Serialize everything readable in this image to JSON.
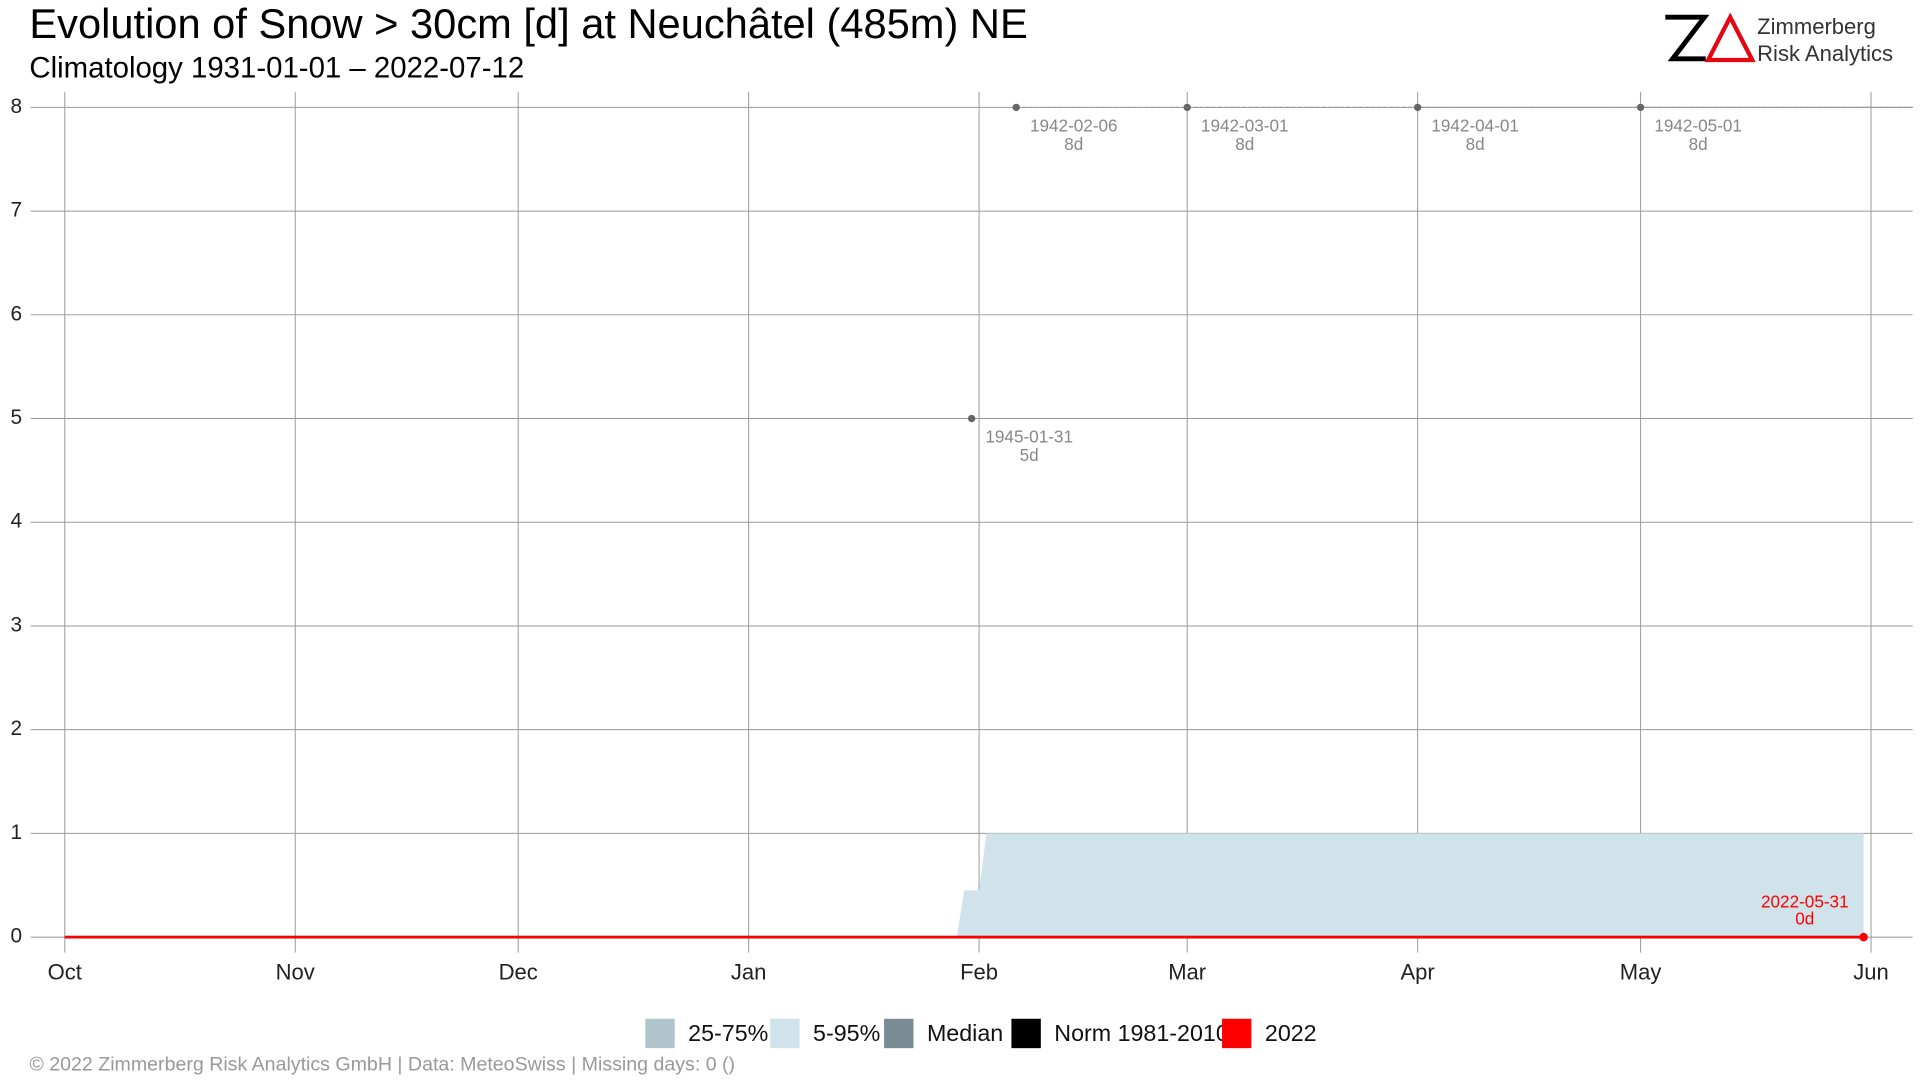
{
  "chart_data": {
    "type": "area",
    "title": "Evolution of Snow > 30cm [d] at Neuchâtel (485m) NE",
    "subtitle": "Climatology 1931-01-01 – 2022-07-12",
    "xlim": [
      -4.6,
      248.6
    ],
    "xticks": [
      {
        "value": 0,
        "label": "Oct"
      },
      {
        "value": 31,
        "label": "Nov"
      },
      {
        "value": 61,
        "label": "Dec"
      },
      {
        "value": 92,
        "label": "Jan"
      },
      {
        "value": 123,
        "label": "Feb"
      },
      {
        "value": 151,
        "label": "Mar"
      },
      {
        "value": 182,
        "label": "Apr"
      },
      {
        "value": 212,
        "label": "May"
      },
      {
        "value": 243,
        "label": "Jun"
      }
    ],
    "ylim": [
      -0.15,
      8.15
    ],
    "yticks": [
      0,
      1,
      2,
      3,
      4,
      5,
      6,
      7,
      8
    ],
    "grid": true,
    "series": [
      {
        "name": "25-75%",
        "color": "#b0c4cb",
        "kind": "band",
        "x": [
          0,
          242
        ],
        "values": [
          0,
          0
        ]
      },
      {
        "name": "5-95%",
        "color": "#d0e3ea",
        "kind": "band",
        "x": [
          0,
          120,
          121,
          123,
          124,
          242
        ],
        "values": [
          0,
          0,
          0.45,
          0.45,
          1,
          1
        ]
      },
      {
        "name": "Median",
        "color": "#7a8c93",
        "kind": "line",
        "x": [
          0,
          242
        ],
        "values": [
          0,
          0
        ]
      },
      {
        "name": "Norm 1981-2010",
        "color": "#000000",
        "kind": "line",
        "x": [
          0,
          242
        ],
        "values": [
          0,
          0
        ]
      },
      {
        "name": "2022",
        "color": "#ff0000",
        "kind": "line",
        "x": [
          0,
          242
        ],
        "values": [
          0,
          0
        ]
      }
    ],
    "records": [
      {
        "date": "1942-02-06",
        "x": 128,
        "value": 8,
        "value_label": "8d"
      },
      {
        "date": "1942-03-01",
        "x": 151,
        "value": 8,
        "value_label": "8d"
      },
      {
        "date": "1942-04-01",
        "x": 182,
        "value": 8,
        "value_label": "8d"
      },
      {
        "date": "1942-05-01",
        "x": 212,
        "value": 8,
        "value_label": "8d"
      },
      {
        "date": "1945-01-31",
        "x": 122,
        "value": 5,
        "value_label": "5d"
      }
    ],
    "last": {
      "date": "2022-05-31",
      "x": 242,
      "value": 0,
      "value_label": "0d",
      "color": "#ff0000"
    }
  },
  "logo": {
    "line1": "Zimmerberg",
    "line2": "Risk Analytics"
  },
  "footer": "©  2022 Zimmerberg Risk Analytics GmbH | Data: MeteoSwiss | Missing days: 0 ()"
}
